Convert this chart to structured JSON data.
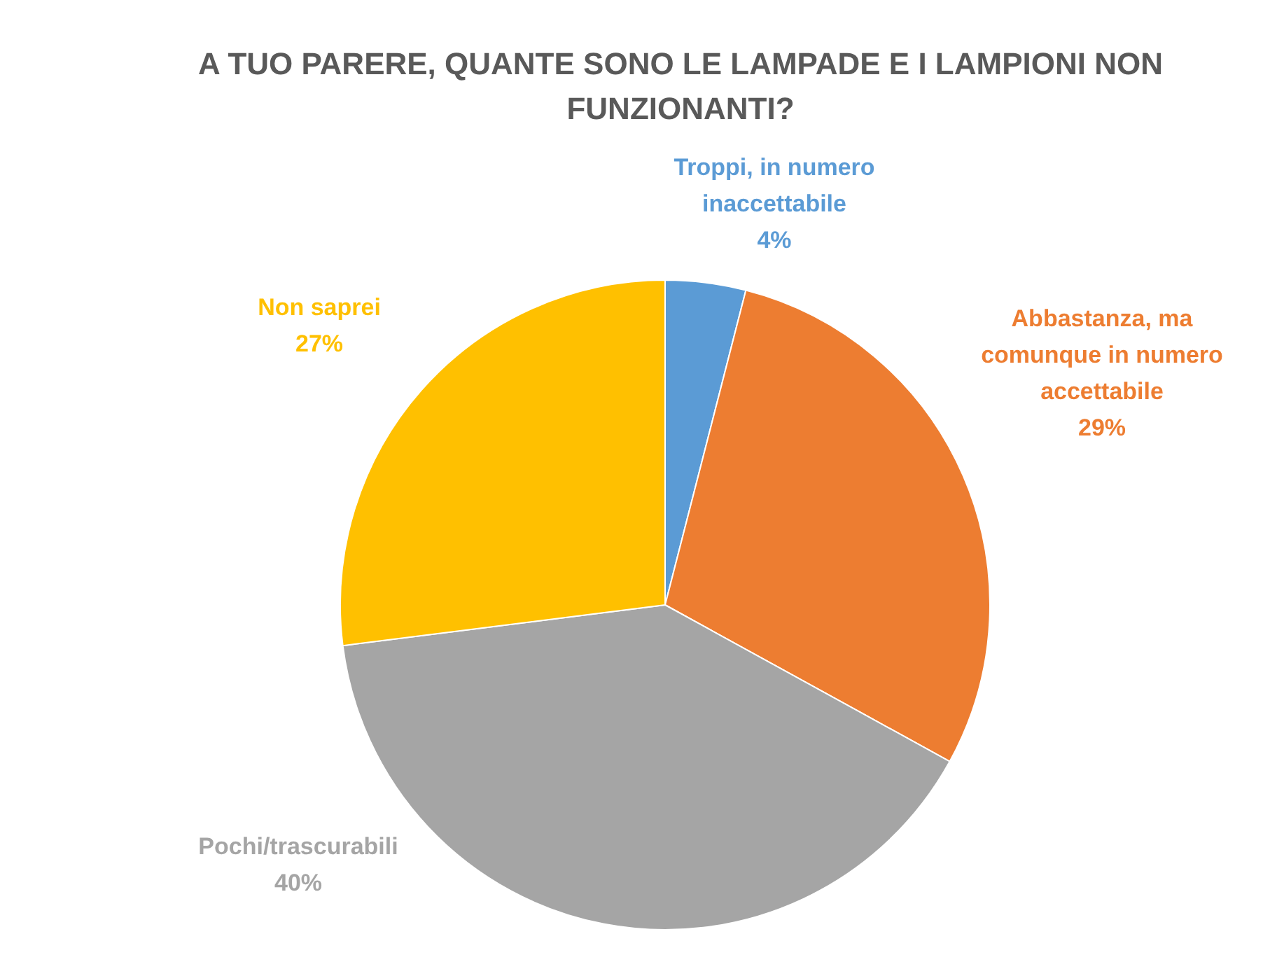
{
  "chart_data": {
    "type": "pie",
    "title": "A TUO PARERE, QUANTE SONO LE LAMPADE E I LAMPIONI NON FUNZIONANTI?",
    "categories": [
      "Troppi, in numero inaccettabile",
      "Abbastanza, ma comunque in numero accettabile",
      "Pochi/trascurabili",
      "Non saprei"
    ],
    "values": [
      4,
      29,
      40,
      27
    ],
    "value_labels": [
      "4%",
      "29%",
      "40%",
      "27%"
    ],
    "colors": [
      "#5b9bd5",
      "#ed7d31",
      "#a5a5a5",
      "#ffc000"
    ],
    "legend": false
  }
}
